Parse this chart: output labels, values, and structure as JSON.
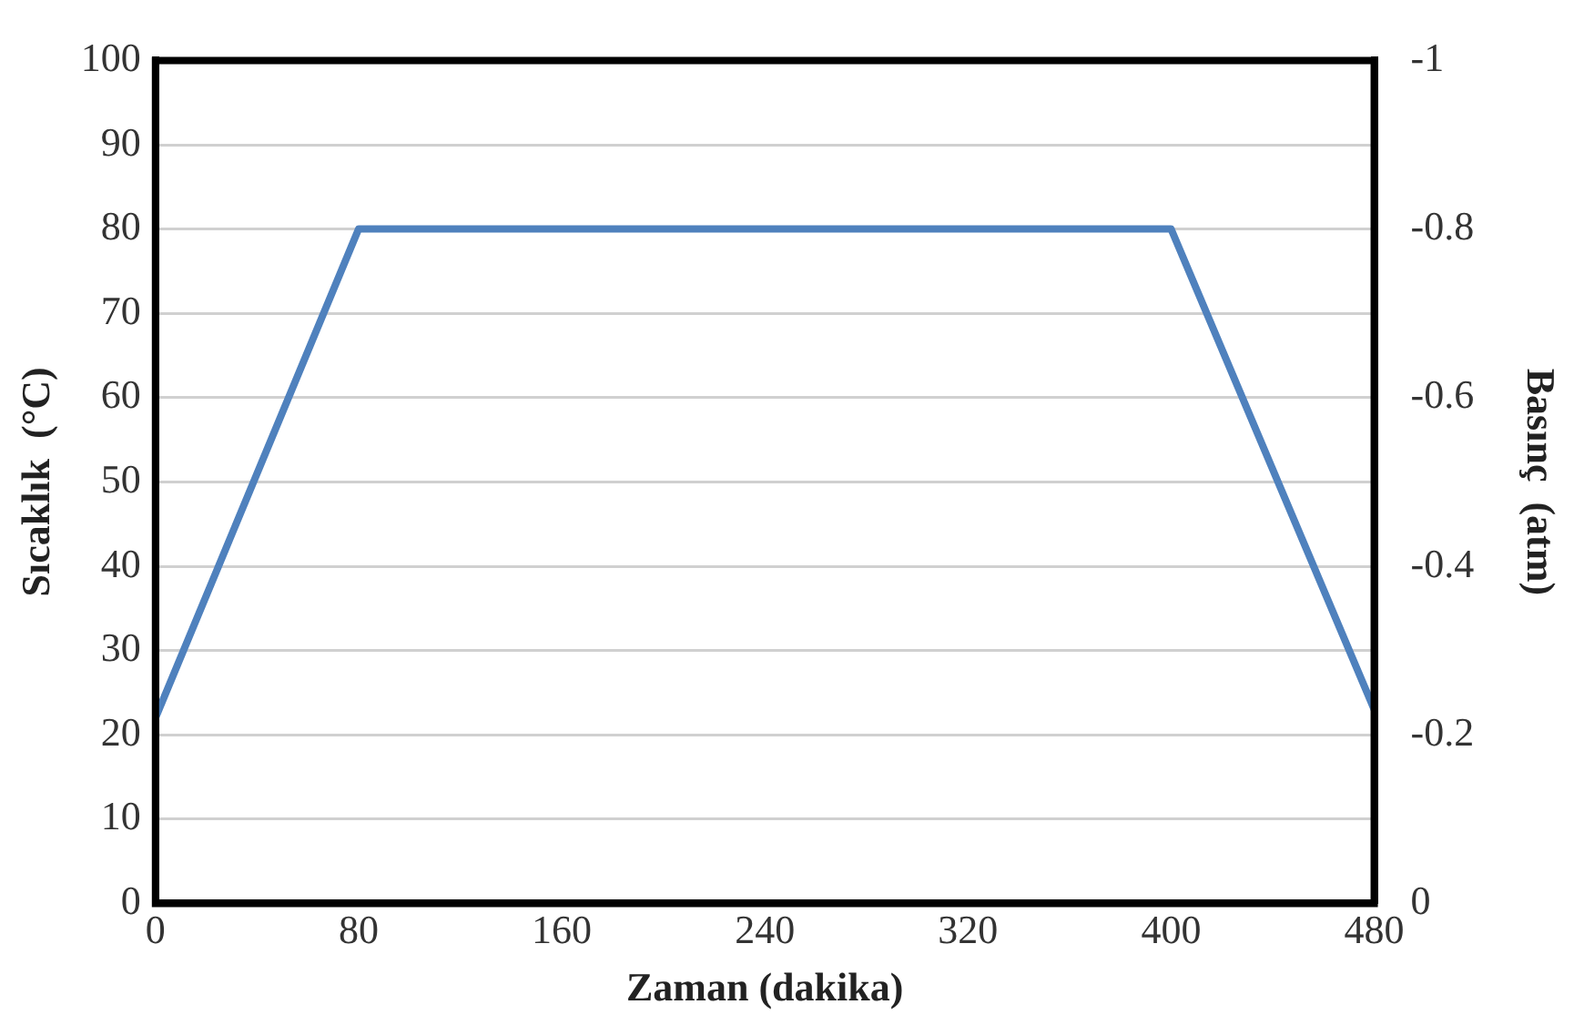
{
  "chart_data": {
    "type": "line",
    "xlabel": "Zaman (dakika)",
    "ylabel": "Sıcaklık  (°C)",
    "y2label": "Basınç  (atm)",
    "x": [
      0,
      80,
      400,
      480
    ],
    "series": [
      {
        "color": "#4f81bd",
        "values": [
          22,
          80,
          80,
          23
        ]
      }
    ],
    "xlim": [
      0,
      480
    ],
    "xticks": [
      0,
      80,
      160,
      240,
      320,
      400,
      480
    ],
    "ylim": [
      0,
      100
    ],
    "yticks": [
      0,
      10,
      20,
      30,
      40,
      50,
      60,
      70,
      80,
      90,
      100
    ],
    "y2lim": [
      0,
      -1
    ],
    "y2ticks": [
      0,
      -0.2,
      -0.4,
      -0.6,
      -0.8,
      -1
    ],
    "grid": "y",
    "legend": false,
    "marker": "none",
    "line_style": "solid"
  }
}
